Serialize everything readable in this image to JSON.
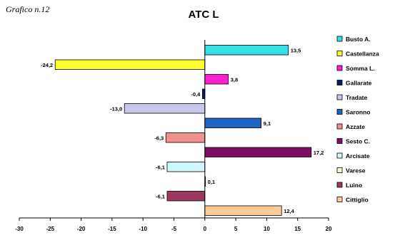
{
  "caption": "Grafico n.12",
  "chart_data": {
    "type": "bar",
    "orientation": "horizontal",
    "title": "ATC L",
    "xlabel": "",
    "ylabel": "",
    "xlim": [
      -30,
      20
    ],
    "x_ticks": [
      -30,
      -25,
      -20,
      -15,
      -10,
      -5,
      0,
      5,
      10,
      15,
      20
    ],
    "grid": false,
    "legend_position": "right",
    "bar_border": "#000000",
    "series": [
      {
        "name": "Busto A.",
        "value": 13.5,
        "label": "13,5",
        "color": "#33e0e8"
      },
      {
        "name": "Castellanza",
        "value": -24.2,
        "label": "-24,2",
        "color": "#ffff33"
      },
      {
        "name": "Somma L.",
        "value": 3.8,
        "label": "3,8",
        "color": "#ff1fd2"
      },
      {
        "name": "Gallarate",
        "value": -0.4,
        "label": "-0,4",
        "color": "#0a1a66"
      },
      {
        "name": "Tradate",
        "value": -13.0,
        "label": "-13,0",
        "color": "#c8c8ec"
      },
      {
        "name": "Saronno",
        "value": 9.1,
        "label": "9,1",
        "color": "#1f63c4"
      },
      {
        "name": "Azzate",
        "value": -6.3,
        "label": "-6,3",
        "color": "#f29090"
      },
      {
        "name": "Sesto C.",
        "value": 17.2,
        "label": "17,2",
        "color": "#7a0f63"
      },
      {
        "name": "Arcisate",
        "value": -6.1,
        "label": "-6,1",
        "color": "#cff7fb"
      },
      {
        "name": "Varese",
        "value": 0.1,
        "label": "0,1",
        "color": "#fbfbd2"
      },
      {
        "name": "Luino",
        "value": -6.1,
        "label": "-6,1",
        "color": "#9a3a60"
      },
      {
        "name": "Cittiglio",
        "value": 12.4,
        "label": "12,4",
        "color": "#ffcc99"
      }
    ]
  }
}
